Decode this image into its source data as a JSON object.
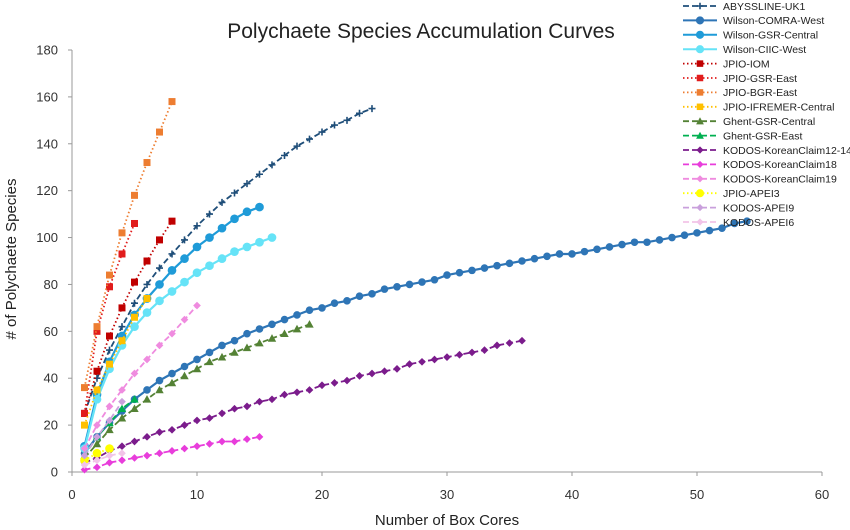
{
  "chart_data": {
    "type": "line",
    "title": "Polychaete Species Accumulation Curves",
    "xlabel": "Number of Box Cores",
    "ylabel": "# of Polychaete Species",
    "xlim": [
      0,
      60
    ],
    "ylim": [
      0,
      180
    ],
    "xticks": [
      0,
      10,
      20,
      30,
      40,
      50,
      60
    ],
    "yticks": [
      0,
      20,
      40,
      60,
      80,
      100,
      120,
      140,
      160,
      180
    ],
    "grid": false,
    "legend_position": "top-right",
    "series": [
      {
        "name": "ABYSSLINE-UK1",
        "color": "#1f4e79",
        "dash": "dash",
        "marker": "plus",
        "x": [
          1,
          2,
          3,
          4,
          5,
          6,
          7,
          8,
          9,
          10,
          11,
          12,
          13,
          14,
          15,
          16,
          17,
          18,
          19,
          20,
          21,
          22,
          23,
          24
        ],
        "y": [
          25,
          40,
          52,
          62,
          72,
          80,
          87,
          93,
          99,
          105,
          110,
          115,
          119,
          123,
          127,
          131,
          135,
          139,
          142,
          145,
          148,
          150,
          153,
          155
        ]
      },
      {
        "name": "Wilson-COMRA-West",
        "color": "#2e75b6",
        "dash": "solid",
        "marker": "circle",
        "x": [
          1,
          2,
          3,
          4,
          5,
          6,
          7,
          8,
          9,
          10,
          11,
          12,
          13,
          14,
          15,
          16,
          17,
          18,
          19,
          20,
          21,
          22,
          23,
          24,
          25,
          26,
          27,
          28,
          29,
          30,
          31,
          32,
          33,
          34,
          35,
          36,
          37,
          38,
          39,
          40,
          41,
          42,
          43,
          44,
          45,
          46,
          47,
          48,
          49,
          50,
          51,
          52,
          53,
          54
        ],
        "y": [
          8,
          15,
          21,
          26,
          31,
          35,
          39,
          42,
          45,
          48,
          51,
          54,
          56,
          59,
          61,
          63,
          65,
          67,
          69,
          70,
          72,
          73,
          75,
          76,
          78,
          79,
          80,
          81,
          82,
          84,
          85,
          86,
          87,
          88,
          89,
          90,
          91,
          92,
          93,
          93,
          94,
          95,
          96,
          97,
          98,
          98,
          99,
          100,
          101,
          102,
          103,
          104,
          106,
          107
        ]
      },
      {
        "name": "Wilson-GSR-Central",
        "color": "#1f9bd8",
        "dash": "solid",
        "marker": "circle",
        "x": [
          1,
          2,
          3,
          4,
          5,
          6,
          7,
          8,
          9,
          10,
          11,
          12,
          13,
          14,
          15
        ],
        "y": [
          11,
          33,
          47,
          58,
          67,
          74,
          80,
          86,
          91,
          96,
          100,
          104,
          108,
          111,
          113
        ]
      },
      {
        "name": "Wilson-CIIC-West",
        "color": "#66e3f7",
        "dash": "solid",
        "marker": "circle",
        "x": [
          1,
          2,
          3,
          4,
          5,
          6,
          7,
          8,
          9,
          10,
          11,
          12,
          13,
          14,
          15,
          16
        ],
        "y": [
          10,
          31,
          44,
          54,
          62,
          68,
          73,
          77,
          81,
          85,
          88,
          91,
          94,
          96,
          98,
          100
        ]
      },
      {
        "name": "JPIO-IOM",
        "color": "#c00000",
        "dash": "dot",
        "marker": "square",
        "x": [
          1,
          2,
          3,
          4,
          5,
          6,
          7,
          8
        ],
        "y": [
          25,
          43,
          58,
          70,
          81,
          90,
          99,
          107
        ]
      },
      {
        "name": "JPIO-GSR-East",
        "color": "#e11c1c",
        "dash": "dot",
        "marker": "square",
        "x": [
          1,
          2,
          3,
          4,
          5
        ],
        "y": [
          25,
          60,
          79,
          93,
          106
        ]
      },
      {
        "name": "JPIO-BGR-East",
        "color": "#ed7d31",
        "dash": "dot",
        "marker": "square",
        "x": [
          1,
          2,
          3,
          4,
          5,
          6,
          7,
          8
        ],
        "y": [
          36,
          62,
          84,
          102,
          118,
          132,
          145,
          158
        ]
      },
      {
        "name": "JPIO-IFREMER-Central",
        "color": "#ffc000",
        "dash": "dot",
        "marker": "square",
        "x": [
          1,
          2,
          3,
          4,
          5,
          6
        ],
        "y": [
          20,
          35,
          46,
          56,
          66,
          74
        ]
      },
      {
        "name": "Ghent-GSR-Central",
        "color": "#548235",
        "dash": "dash",
        "marker": "triangle",
        "x": [
          1,
          2,
          3,
          4,
          5,
          6,
          7,
          8,
          9,
          10,
          11,
          12,
          13,
          14,
          15,
          16,
          17,
          18,
          19
        ],
        "y": [
          6,
          12,
          18,
          23,
          27,
          31,
          35,
          38,
          41,
          44,
          47,
          49,
          51,
          53,
          55,
          57,
          59,
          61,
          63
        ]
      },
      {
        "name": "Ghent-GSR-East",
        "color": "#00b050",
        "dash": "dash",
        "marker": "triangle",
        "x": [
          1,
          2,
          3,
          4,
          5
        ],
        "y": [
          7,
          15,
          21,
          27,
          31
        ]
      },
      {
        "name": "KODOS-KoreanClaim12-14",
        "color": "#7b1c8c",
        "dash": "dash",
        "marker": "diamond",
        "x": [
          1,
          2,
          3,
          4,
          5,
          6,
          7,
          8,
          9,
          10,
          11,
          12,
          13,
          14,
          15,
          16,
          17,
          18,
          19,
          20,
          21,
          22,
          23,
          24,
          25,
          26,
          27,
          28,
          29,
          30,
          31,
          32,
          33,
          34,
          35,
          36
        ],
        "y": [
          4,
          6,
          9,
          11,
          13,
          15,
          17,
          18,
          20,
          22,
          23,
          25,
          27,
          28,
          30,
          31,
          33,
          34,
          35,
          37,
          38,
          39,
          41,
          42,
          43,
          44,
          46,
          47,
          48,
          49,
          50,
          51,
          52,
          54,
          55,
          56
        ]
      },
      {
        "name": "KODOS-KoreanClaim18",
        "color": "#e83ddb",
        "dash": "dash",
        "marker": "diamond",
        "x": [
          1,
          2,
          3,
          4,
          5,
          6,
          7,
          8,
          9,
          10,
          11,
          12,
          13,
          14,
          15
        ],
        "y": [
          1,
          2,
          4,
          5,
          6,
          7,
          8,
          9,
          10,
          11,
          12,
          13,
          13,
          14,
          15
        ]
      },
      {
        "name": "KODOS-KoreanClaim19",
        "color": "#ef8bdf",
        "dash": "dash",
        "marker": "diamond",
        "x": [
          1,
          2,
          3,
          4,
          5,
          6,
          7,
          8,
          9,
          10
        ],
        "y": [
          10,
          20,
          28,
          35,
          42,
          48,
          54,
          59,
          65,
          71
        ]
      },
      {
        "name": "JPIO-APEI3",
        "color": "#ffff00",
        "dash": "dot",
        "marker": "circle",
        "x": [
          1,
          2,
          3
        ],
        "y": [
          5,
          8,
          10
        ]
      },
      {
        "name": "KODOS-APEI9",
        "color": "#c9a0dc",
        "dash": "dash",
        "marker": "diamond",
        "x": [
          1,
          2,
          3,
          4
        ],
        "y": [
          7,
          15,
          22,
          30
        ]
      },
      {
        "name": "KODOS-APEI6",
        "color": "#f2c4e8",
        "dash": "dash",
        "marker": "diamond",
        "x": [
          1,
          2,
          3,
          4
        ],
        "y": [
          3,
          5,
          7,
          8
        ]
      }
    ]
  }
}
